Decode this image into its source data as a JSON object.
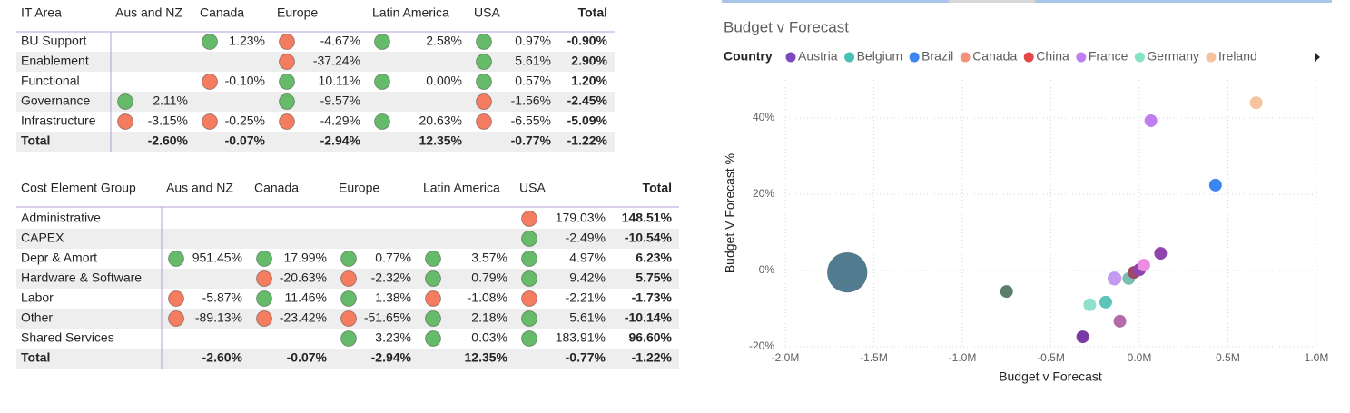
{
  "table1": {
    "header": [
      "IT Area",
      "Aus and NZ",
      "Canada",
      "Europe",
      "Latin America",
      "USA",
      "Total"
    ],
    "rows": [
      {
        "label": "BU Support",
        "cells": [
          null,
          "1.23%",
          "-4.67%",
          "2.58%",
          "0.97%",
          "-0.90%"
        ],
        "icons": [
          null,
          "#66bb6a",
          "#f47c61",
          "#66bb6a",
          "#66bb6a",
          null
        ]
      },
      {
        "label": "Enablement",
        "cells": [
          null,
          null,
          "-37.24%",
          null,
          "5.61%",
          "2.90%"
        ],
        "icons": [
          null,
          null,
          "#f47c61",
          null,
          "#66bb6a",
          null
        ]
      },
      {
        "label": "Functional",
        "cells": [
          null,
          "-0.10%",
          "10.11%",
          "0.00%",
          "0.57%",
          "1.20%"
        ],
        "icons": [
          null,
          "#f47c61",
          "#66bb6a",
          "#66bb6a",
          "#66bb6a",
          null
        ]
      },
      {
        "label": "Governance",
        "cells": [
          "2.11%",
          null,
          "-9.57%",
          null,
          "-1.56%",
          "-2.45%"
        ],
        "icons": [
          "#66bb6a",
          null,
          "#66bb6a",
          null,
          "#f47c61",
          null
        ]
      },
      {
        "label": "Infrastructure",
        "cells": [
          "-3.15%",
          "-0.25%",
          "-4.29%",
          "20.63%",
          "-6.55%",
          "-5.09%"
        ],
        "icons": [
          "#f47c61",
          "#f47c61",
          "#f47c61",
          "#66bb6a",
          "#f47c61",
          null
        ]
      },
      {
        "label": "Total",
        "cells": [
          "-2.60%",
          "-0.07%",
          "-2.94%",
          "12.35%",
          "-0.77%",
          "-1.22%"
        ],
        "icons": [
          null,
          null,
          null,
          null,
          null,
          null
        ]
      }
    ]
  },
  "table2": {
    "header": [
      "Cost Element Group",
      "Aus and NZ",
      "Canada",
      "Europe",
      "Latin America",
      "USA",
      "Total"
    ],
    "rows": [
      {
        "label": "Administrative",
        "cells": [
          null,
          null,
          null,
          null,
          "179.03%",
          "148.51%"
        ],
        "icons": [
          null,
          null,
          null,
          null,
          "#f47c61",
          null
        ]
      },
      {
        "label": "CAPEX",
        "cells": [
          null,
          null,
          null,
          null,
          "-2.49%",
          "-10.54%"
        ],
        "icons": [
          null,
          null,
          null,
          null,
          "#66bb6a",
          null
        ]
      },
      {
        "label": "Depr & Amort",
        "cells": [
          "951.45%",
          "17.99%",
          "0.77%",
          "3.57%",
          "4.97%",
          "6.23%"
        ],
        "icons": [
          "#66bb6a",
          "#66bb6a",
          "#66bb6a",
          "#66bb6a",
          "#66bb6a",
          null
        ]
      },
      {
        "label": "Hardware & Software",
        "cells": [
          null,
          "-20.63%",
          "-2.32%",
          "0.79%",
          "9.42%",
          "5.75%"
        ],
        "icons": [
          null,
          "#f47c61",
          "#f47c61",
          "#66bb6a",
          "#66bb6a",
          null
        ]
      },
      {
        "label": "Labor",
        "cells": [
          "-5.87%",
          "11.46%",
          "1.38%",
          "-1.08%",
          "-2.21%",
          "-1.73%"
        ],
        "icons": [
          "#f47c61",
          "#66bb6a",
          "#66bb6a",
          "#f47c61",
          "#f47c61",
          null
        ]
      },
      {
        "label": "Other",
        "cells": [
          "-89.13%",
          "-23.42%",
          "-51.65%",
          "2.18%",
          "5.61%",
          "-10.14%"
        ],
        "icons": [
          "#f47c61",
          "#f47c61",
          "#f47c61",
          "#66bb6a",
          "#66bb6a",
          null
        ]
      },
      {
        "label": "Shared Services",
        "cells": [
          null,
          null,
          "3.23%",
          "0.03%",
          "183.91%",
          "96.60%"
        ],
        "icons": [
          null,
          null,
          "#66bb6a",
          "#66bb6a",
          "#66bb6a",
          null
        ]
      },
      {
        "label": "Total",
        "cells": [
          "-2.60%",
          "-0.07%",
          "-2.94%",
          "12.35%",
          "-0.77%",
          "-1.22%"
        ],
        "icons": [
          null,
          null,
          null,
          null,
          null,
          null
        ]
      }
    ]
  },
  "chart_data": {
    "type": "scatter",
    "title": "Budget v Forecast",
    "legend_title": "Country",
    "legend": [
      {
        "name": "Austria",
        "color": "#7e48c2"
      },
      {
        "name": "Belgium",
        "color": "#47c1b5"
      },
      {
        "name": "Brazil",
        "color": "#3d85f0"
      },
      {
        "name": "Canada",
        "color": "#f4937a"
      },
      {
        "name": "China",
        "color": "#e54848"
      },
      {
        "name": "France",
        "color": "#c07ef0"
      },
      {
        "name": "Germany",
        "color": "#86e3c6"
      },
      {
        "name": "Ireland",
        "color": "#f7c39e"
      }
    ],
    "x": [
      -1650000,
      -750000,
      -320000,
      -280000,
      -190000,
      -140000,
      -110000,
      -60000,
      -30000,
      0,
      25000,
      120000,
      65000,
      430000,
      660000
    ],
    "y": [
      -0.5,
      -5.5,
      -17.4,
      -9.0,
      -8.3,
      -2.1,
      -13.3,
      -2.1,
      -0.5,
      0.2,
      1.4,
      4.5,
      39.3,
      22.4,
      44.0
    ],
    "sizes": [
      10,
      1,
      1,
      1,
      1,
      1.2,
      1,
      1,
      1,
      1,
      1,
      1,
      1,
      1,
      1
    ],
    "colors": [
      "#527b8f",
      "#5b7d6c",
      "#7a3aa6",
      "#8fe0cc",
      "#5cc3b8",
      "#c39af0",
      "#b46aa8",
      "#7dbdaf",
      "#9b4a6a",
      "#8e44ad",
      "#ec8ce2",
      "#8e44ad",
      "#c07ef0",
      "#3d85f0",
      "#f7c39e"
    ],
    "x_label": "Budget v Forecast",
    "y_label": "Budget V Forecast %",
    "xlim": [
      -2000000,
      1000000
    ],
    "ylim": [
      -20,
      50
    ],
    "xticks": [
      {
        "value": -2000000,
        "label": "-2.0M"
      },
      {
        "value": -1500000,
        "label": "-1.5M"
      },
      {
        "value": -1000000,
        "label": "-1.0M"
      },
      {
        "value": -500000,
        "label": "-0.5M"
      },
      {
        "value": 0,
        "label": "0.0M"
      },
      {
        "value": 500000,
        "label": "0.5M"
      },
      {
        "value": 1000000,
        "label": "1.0M"
      }
    ],
    "yticks": [
      {
        "value": -20,
        "label": "-20%"
      },
      {
        "value": 0,
        "label": "0%"
      },
      {
        "value": 20,
        "label": "20%"
      },
      {
        "value": 40,
        "label": "40%"
      }
    ],
    "grid": true
  }
}
